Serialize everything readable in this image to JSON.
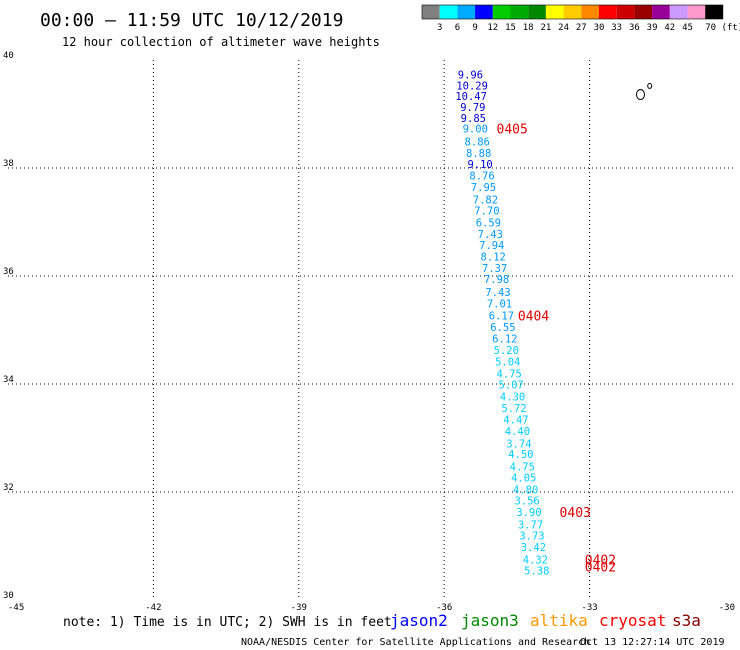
{
  "title": "00:00 – 11:59 UTC 10/12/2019",
  "subtitle": "12 hour collection of altimeter wave heights",
  "colorbar": {
    "labels": [
      "3",
      "6",
      "9",
      "12",
      "15",
      "18",
      "21",
      "24",
      "27",
      "30",
      "33",
      "36",
      "39",
      "42",
      "45",
      "70 (ft)"
    ],
    "colors": [
      "#808080",
      "#00ffff",
      "#00aaff",
      "#0000ff",
      "#00cc00",
      "#00aa00",
      "#008800",
      "#ffff00",
      "#ffcc00",
      "#ff8800",
      "#ff0000",
      "#cc0000",
      "#990000",
      "#990099",
      "#cc99ff",
      "#ff99cc",
      "#000000"
    ]
  },
  "chart_data": {
    "type": "scatter",
    "xlim": [
      -45,
      -30
    ],
    "ylim": [
      30,
      40
    ],
    "x_ticks": [
      "-45",
      "-42",
      "-39",
      "-36",
      "-33",
      "-30"
    ],
    "y_ticks": [
      "30",
      "32",
      "34",
      "36",
      "38",
      "40"
    ],
    "grid": true,
    "points": [
      {
        "lon": -35.72,
        "lat": 39.73,
        "value": "9.96",
        "color": "#0000cc"
      },
      {
        "lon": -35.75,
        "lat": 39.53,
        "value": "10.29",
        "color": "#0000cc"
      },
      {
        "lon": -35.77,
        "lat": 39.33,
        "value": "10.47",
        "color": "#0000cc"
      },
      {
        "lon": -35.67,
        "lat": 39.13,
        "value": "9.79",
        "color": "#0000cc"
      },
      {
        "lon": -35.66,
        "lat": 38.93,
        "value": "9.85",
        "color": "#0000cc"
      },
      {
        "lon": -35.62,
        "lat": 38.73,
        "value": "9.00",
        "color": "#0099ff"
      },
      {
        "lon": -35.58,
        "lat": 38.49,
        "value": "8.86",
        "color": "#0099ff"
      },
      {
        "lon": -35.55,
        "lat": 38.28,
        "value": "8.88",
        "color": "#0099ff"
      },
      {
        "lon": -35.52,
        "lat": 38.07,
        "value": "9.10",
        "color": "#0000cc"
      },
      {
        "lon": -35.48,
        "lat": 37.86,
        "value": "8.76",
        "color": "#0099ff"
      },
      {
        "lon": -35.45,
        "lat": 37.65,
        "value": "7.95",
        "color": "#0099ff"
      },
      {
        "lon": -35.41,
        "lat": 37.42,
        "value": "7.82",
        "color": "#0099ff"
      },
      {
        "lon": -35.38,
        "lat": 37.21,
        "value": "7.70",
        "color": "#0099ff"
      },
      {
        "lon": -35.35,
        "lat": 36.99,
        "value": "6.59",
        "color": "#0099ff"
      },
      {
        "lon": -35.31,
        "lat": 36.78,
        "value": "7.43",
        "color": "#0099ff"
      },
      {
        "lon": -35.28,
        "lat": 36.57,
        "value": "7.94",
        "color": "#0099ff"
      },
      {
        "lon": -35.25,
        "lat": 36.36,
        "value": "8.12",
        "color": "#0099ff"
      },
      {
        "lon": -35.22,
        "lat": 36.15,
        "value": "7.37",
        "color": "#0099ff"
      },
      {
        "lon": -35.18,
        "lat": 35.94,
        "value": "7.98",
        "color": "#0099ff"
      },
      {
        "lon": -35.15,
        "lat": 35.7,
        "value": "7.43",
        "color": "#0099ff"
      },
      {
        "lon": -35.12,
        "lat": 35.49,
        "value": "7.01",
        "color": "#0099ff"
      },
      {
        "lon": -35.08,
        "lat": 35.27,
        "value": "6.17",
        "color": "#0099ff"
      },
      {
        "lon": -35.05,
        "lat": 35.06,
        "value": "6.55",
        "color": "#0099ff"
      },
      {
        "lon": -35.01,
        "lat": 34.84,
        "value": "6.12",
        "color": "#0099ff"
      },
      {
        "lon": -34.98,
        "lat": 34.63,
        "value": "5.20",
        "color": "#00ccff"
      },
      {
        "lon": -34.95,
        "lat": 34.42,
        "value": "5.04",
        "color": "#00ccff"
      },
      {
        "lon": -34.92,
        "lat": 34.19,
        "value": "4.75",
        "color": "#00ccff"
      },
      {
        "lon": -34.88,
        "lat": 33.99,
        "value": "5.07",
        "color": "#00ccff"
      },
      {
        "lon": -34.85,
        "lat": 33.77,
        "value": "4.30",
        "color": "#00ccff"
      },
      {
        "lon": -34.82,
        "lat": 33.56,
        "value": "5.72",
        "color": "#00ccff"
      },
      {
        "lon": -34.78,
        "lat": 33.34,
        "value": "4.47",
        "color": "#00ccff"
      },
      {
        "lon": -34.75,
        "lat": 33.13,
        "value": "4.40",
        "color": "#00ccff"
      },
      {
        "lon": -34.72,
        "lat": 32.9,
        "value": "3.74",
        "color": "#00ccff"
      },
      {
        "lon": -34.68,
        "lat": 32.7,
        "value": "4.50",
        "color": "#00ccff"
      },
      {
        "lon": -34.65,
        "lat": 32.47,
        "value": "4.75",
        "color": "#00ccff"
      },
      {
        "lon": -34.62,
        "lat": 32.27,
        "value": "4.05",
        "color": "#00ccff"
      },
      {
        "lon": -34.58,
        "lat": 32.05,
        "value": "4.80",
        "color": "#00ccff"
      },
      {
        "lon": -34.55,
        "lat": 31.84,
        "value": "3.56",
        "color": "#00ccff"
      },
      {
        "lon": -34.51,
        "lat": 31.63,
        "value": "3.90",
        "color": "#00ccff"
      },
      {
        "lon": -34.48,
        "lat": 31.4,
        "value": "3.77",
        "color": "#00ccff"
      },
      {
        "lon": -34.45,
        "lat": 31.19,
        "value": "3.73",
        "color": "#00ccff"
      },
      {
        "lon": -34.42,
        "lat": 30.98,
        "value": "3.42",
        "color": "#00ccff"
      },
      {
        "lon": -34.38,
        "lat": 30.75,
        "value": "4.32",
        "color": "#00ccff"
      },
      {
        "lon": -34.35,
        "lat": 30.55,
        "value": "5.38",
        "color": "#00ccff"
      }
    ],
    "time_labels": [
      {
        "lon": -34.92,
        "lat": 38.73,
        "text": "0405"
      },
      {
        "lon": -34.48,
        "lat": 35.27,
        "text": "0404"
      },
      {
        "lon": -33.62,
        "lat": 31.63,
        "text": "0403"
      },
      {
        "lon": -33.1,
        "lat": 30.75,
        "text": "0402"
      },
      {
        "lon": -33.1,
        "lat": 30.62,
        "text": "0402"
      }
    ]
  },
  "map_features": [
    {
      "type": "island",
      "name": "small-islet-1",
      "lon": -31.76,
      "lat": 39.52
    },
    {
      "type": "island",
      "name": "small-islet-2",
      "lon": -31.95,
      "lat": 39.36
    }
  ],
  "note": "note: 1) Time is in UTC; 2) SWH is in feet",
  "satellites": [
    {
      "name": "jason2",
      "color": "#0000ff"
    },
    {
      "name": "jason3",
      "color": "#008800"
    },
    {
      "name": "altika",
      "color": "#ff9900"
    },
    {
      "name": "cryosat",
      "color": "#ff0000"
    },
    {
      "name": "s3a",
      "color": "#880000"
    }
  ],
  "footer_left": "NOAA/NESDIS Center for Satellite Applications and Research",
  "footer_right": "Oct 13 12:27:14 UTC 2019"
}
